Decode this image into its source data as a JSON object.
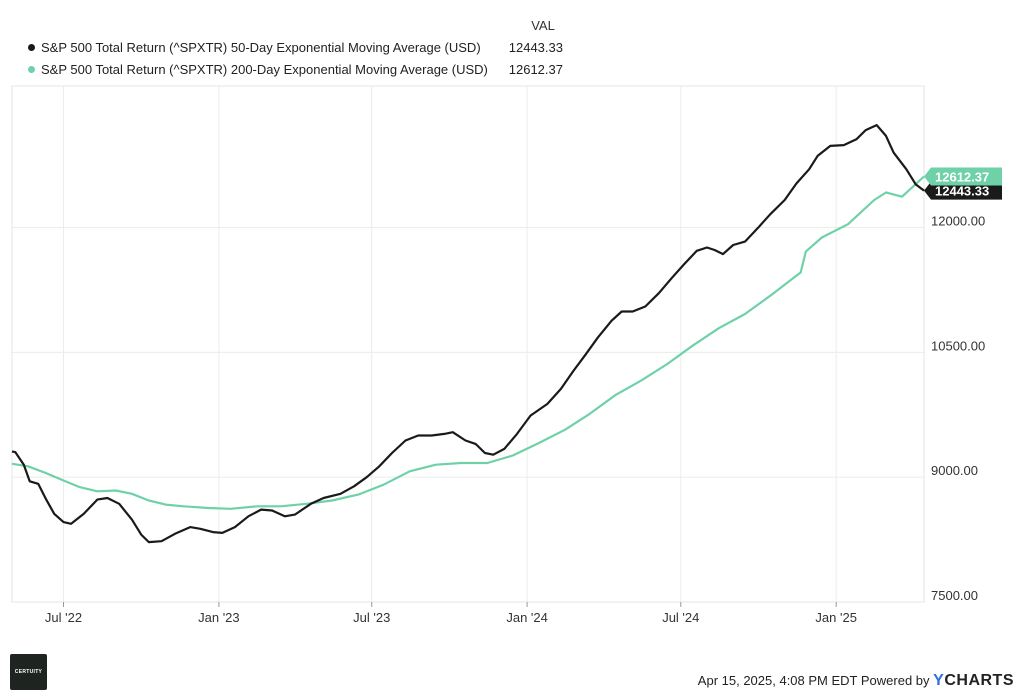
{
  "legend": {
    "header": "VAL",
    "items": [
      {
        "label": "S&P 500 Total Return (^SPXTR) 50-Day Exponential Moving Average (USD)",
        "value": "12443.33",
        "color": "#1a1a1a"
      },
      {
        "label": "S&P 500 Total Return (^SPXTR) 200-Day Exponential Moving Average (USD)",
        "value": "12612.37",
        "color": "#6fd1a8"
      }
    ]
  },
  "footer": {
    "timestamp": "Apr 15, 2025, 4:08 PM EDT Powered by",
    "brand_y": "Y",
    "brand_rest": "CHARTS"
  },
  "logo_text": "CERTUITY",
  "chart_data": {
    "type": "line",
    "x_ticks": [
      "Jul '22",
      "Jan '23",
      "Jul '23",
      "Jan '24",
      "Jul '24",
      "Jan '25"
    ],
    "y_ticks": [
      "7500.00",
      "9000.00",
      "10500.00",
      "12000.00"
    ],
    "ylim": [
      7500,
      13700
    ],
    "grid": true,
    "legend_position": "top-left",
    "series": [
      {
        "name": "S&P 500 Total Return (^SPXTR) 50-Day Exponential Moving Average (USD)",
        "color": "#1a1a1a",
        "end_label": "12443.33",
        "points": [
          [
            "2022-05-01",
            9310
          ],
          [
            "2022-05-05",
            9300
          ],
          [
            "2022-05-15",
            9150
          ],
          [
            "2022-05-22",
            8950
          ],
          [
            "2022-06-01",
            8920
          ],
          [
            "2022-06-10",
            8740
          ],
          [
            "2022-06-20",
            8560
          ],
          [
            "2022-07-01",
            8460
          ],
          [
            "2022-07-10",
            8440
          ],
          [
            "2022-07-25",
            8560
          ],
          [
            "2022-08-10",
            8730
          ],
          [
            "2022-08-22",
            8750
          ],
          [
            "2022-09-05",
            8680
          ],
          [
            "2022-09-20",
            8490
          ],
          [
            "2022-10-01",
            8310
          ],
          [
            "2022-10-10",
            8220
          ],
          [
            "2022-10-25",
            8230
          ],
          [
            "2022-11-10",
            8320
          ],
          [
            "2022-11-28",
            8400
          ],
          [
            "2022-12-10",
            8380
          ],
          [
            "2022-12-25",
            8340
          ],
          [
            "2023-01-05",
            8330
          ],
          [
            "2023-01-20",
            8400
          ],
          [
            "2023-02-05",
            8530
          ],
          [
            "2023-02-20",
            8610
          ],
          [
            "2023-03-05",
            8600
          ],
          [
            "2023-03-20",
            8530
          ],
          [
            "2023-04-01",
            8550
          ],
          [
            "2023-04-20",
            8680
          ],
          [
            "2023-05-05",
            8750
          ],
          [
            "2023-05-25",
            8800
          ],
          [
            "2023-06-10",
            8890
          ],
          [
            "2023-06-25",
            9000
          ],
          [
            "2023-07-10",
            9130
          ],
          [
            "2023-07-25",
            9290
          ],
          [
            "2023-08-10",
            9440
          ],
          [
            "2023-08-25",
            9500
          ],
          [
            "2023-09-10",
            9500
          ],
          [
            "2023-09-25",
            9520
          ],
          [
            "2023-10-05",
            9540
          ],
          [
            "2023-10-20",
            9440
          ],
          [
            "2023-11-01",
            9400
          ],
          [
            "2023-11-12",
            9290
          ],
          [
            "2023-11-22",
            9270
          ],
          [
            "2023-12-05",
            9340
          ],
          [
            "2023-12-20",
            9520
          ],
          [
            "2024-01-05",
            9740
          ],
          [
            "2024-01-25",
            9880
          ],
          [
            "2024-02-10",
            10060
          ],
          [
            "2024-02-25",
            10280
          ],
          [
            "2024-03-10",
            10470
          ],
          [
            "2024-03-25",
            10680
          ],
          [
            "2024-04-10",
            10880
          ],
          [
            "2024-04-22",
            10990
          ],
          [
            "2024-05-05",
            10990
          ],
          [
            "2024-05-20",
            11050
          ],
          [
            "2024-06-05",
            11210
          ],
          [
            "2024-06-20",
            11390
          ],
          [
            "2024-07-05",
            11560
          ],
          [
            "2024-07-20",
            11720
          ],
          [
            "2024-08-01",
            11760
          ],
          [
            "2024-08-10",
            11730
          ],
          [
            "2024-08-20",
            11680
          ],
          [
            "2024-09-01",
            11790
          ],
          [
            "2024-09-15",
            11830
          ],
          [
            "2024-09-30",
            11990
          ],
          [
            "2024-10-15",
            12160
          ],
          [
            "2024-11-01",
            12330
          ],
          [
            "2024-11-15",
            12530
          ],
          [
            "2024-11-30",
            12700
          ],
          [
            "2024-12-10",
            12860
          ],
          [
            "2024-12-25",
            12980
          ],
          [
            "2025-01-10",
            12990
          ],
          [
            "2025-01-25",
            13060
          ],
          [
            "2025-02-05",
            13170
          ],
          [
            "2025-02-18",
            13230
          ],
          [
            "2025-03-01",
            13100
          ],
          [
            "2025-03-10",
            12900
          ],
          [
            "2025-03-25",
            12700
          ],
          [
            "2025-04-05",
            12520
          ],
          [
            "2025-04-15",
            12443.33
          ]
        ]
      },
      {
        "name": "S&P 500 Total Return (^SPXTR) 200-Day Exponential Moving Average (USD)",
        "color": "#6fd1a8",
        "end_label": "12612.37",
        "points": [
          [
            "2022-05-01",
            9160
          ],
          [
            "2022-05-20",
            9130
          ],
          [
            "2022-06-10",
            9050
          ],
          [
            "2022-07-01",
            8960
          ],
          [
            "2022-07-20",
            8880
          ],
          [
            "2022-08-10",
            8830
          ],
          [
            "2022-09-01",
            8840
          ],
          [
            "2022-09-20",
            8800
          ],
          [
            "2022-10-10",
            8720
          ],
          [
            "2022-10-30",
            8670
          ],
          [
            "2022-11-20",
            8650
          ],
          [
            "2022-12-20",
            8630
          ],
          [
            "2023-01-15",
            8620
          ],
          [
            "2023-02-15",
            8650
          ],
          [
            "2023-03-15",
            8650
          ],
          [
            "2023-04-15",
            8680
          ],
          [
            "2023-05-15",
            8720
          ],
          [
            "2023-06-15",
            8790
          ],
          [
            "2023-07-15",
            8910
          ],
          [
            "2023-08-15",
            9070
          ],
          [
            "2023-09-15",
            9150
          ],
          [
            "2023-10-15",
            9170
          ],
          [
            "2023-11-15",
            9170
          ],
          [
            "2023-12-15",
            9260
          ],
          [
            "2024-01-15",
            9410
          ],
          [
            "2024-02-15",
            9570
          ],
          [
            "2024-03-15",
            9760
          ],
          [
            "2024-04-15",
            9990
          ],
          [
            "2024-05-15",
            10160
          ],
          [
            "2024-06-15",
            10360
          ],
          [
            "2024-07-15",
            10580
          ],
          [
            "2024-08-15",
            10790
          ],
          [
            "2024-09-15",
            10960
          ],
          [
            "2024-10-15",
            11180
          ],
          [
            "2024-11-20",
            11460
          ],
          [
            "2024-11-26",
            11710
          ],
          [
            "2024-12-15",
            11880
          ],
          [
            "2025-01-15",
            12040
          ],
          [
            "2025-02-15",
            12330
          ],
          [
            "2025-03-01",
            12420
          ],
          [
            "2025-03-20",
            12370
          ],
          [
            "2025-04-15",
            12612.37
          ]
        ]
      }
    ]
  }
}
